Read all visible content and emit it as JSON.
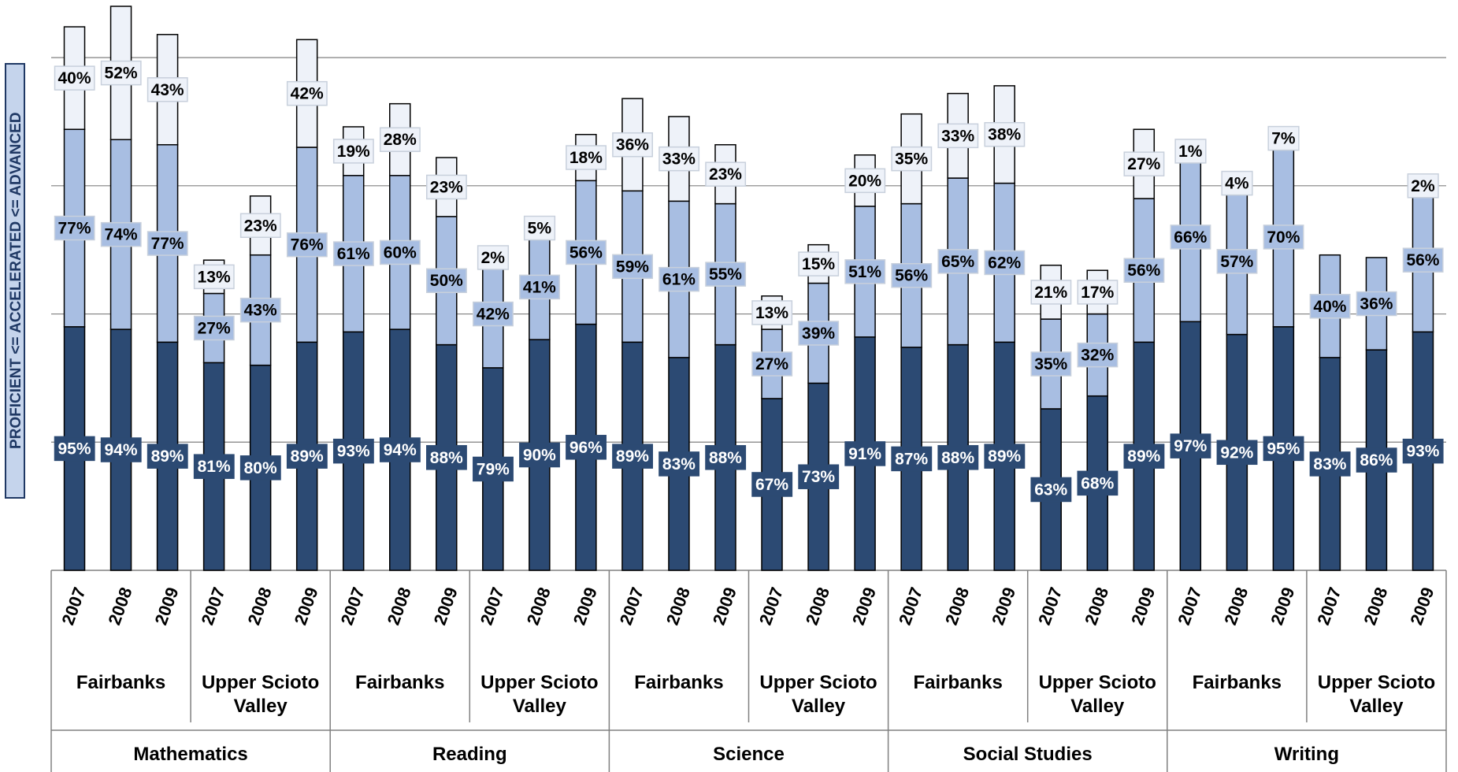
{
  "chart_data": {
    "type": "stacked_bar",
    "y_label": "PROFICIENT <= ACCELERATED <= ADVANCED",
    "categories": [
      "2007",
      "2008",
      "2009",
      "2007",
      "2008",
      "2009",
      "2007",
      "2008",
      "2009",
      "2007",
      "2008",
      "2009",
      "2007",
      "2008",
      "2009",
      "2007",
      "2008",
      "2009",
      "2007",
      "2008",
      "2009",
      "2007",
      "2008",
      "2009",
      "2007",
      "2008",
      "2009",
      "2007",
      "2008",
      "2009"
    ],
    "groups": [
      "Fairbanks",
      "Upper Scioto Valley",
      "Fairbanks",
      "Upper Scioto Valley",
      "Fairbanks",
      "Upper Scioto Valley",
      "Fairbanks",
      "Upper Scioto Valley",
      "Fairbanks",
      "Upper Scioto Valley"
    ],
    "subjects": [
      "Mathematics",
      "Reading",
      "Science",
      "Social Studies",
      "Writing"
    ],
    "ylim": [
      0,
      220
    ],
    "yticks": [
      50,
      100,
      150,
      200
    ],
    "grid": true,
    "series": [
      {
        "color": "#2c4a73",
        "label_color": "#ffffff",
        "values": [
          95,
          94,
          89,
          81,
          80,
          89,
          93,
          94,
          88,
          79,
          90,
          96,
          89,
          83,
          88,
          67,
          73,
          91,
          87,
          88,
          89,
          63,
          68,
          89,
          97,
          92,
          95,
          83,
          86,
          93
        ],
        "value_labels": [
          "95%",
          "94%",
          "89%",
          "81%",
          "80%",
          "89%",
          "93%",
          "94%",
          "88%",
          "79%",
          "90%",
          "96%",
          "89%",
          "83%",
          "88%",
          "67%",
          "73%",
          "91%",
          "87%",
          "88%",
          "89%",
          "63%",
          "68%",
          "89%",
          "97%",
          "92%",
          "95%",
          "83%",
          "86%",
          "93%"
        ]
      },
      {
        "color": "#a8bee2",
        "label_color": "#000000",
        "values": [
          77,
          74,
          77,
          27,
          43,
          76,
          61,
          60,
          50,
          42,
          41,
          56,
          59,
          61,
          55,
          27,
          39,
          51,
          56,
          65,
          62,
          35,
          32,
          56,
          66,
          57,
          70,
          40,
          36,
          56
        ],
        "value_labels": [
          "77%",
          "74%",
          "77%",
          "27%",
          "43%",
          "76%",
          "61%",
          "60%",
          "50%",
          "42%",
          "41%",
          "56%",
          "59%",
          "61%",
          "55%",
          "27%",
          "39%",
          "51%",
          "56%",
          "65%",
          "62%",
          "35%",
          "32%",
          "56%",
          "66%",
          "57%",
          "70%",
          "40%",
          "36%",
          "56%"
        ]
      },
      {
        "color": "#eef2f9",
        "label_color": "#000000",
        "values": [
          40,
          52,
          43,
          13,
          23,
          42,
          19,
          28,
          23,
          2,
          5,
          18,
          36,
          33,
          23,
          13,
          15,
          20,
          35,
          33,
          38,
          21,
          17,
          27,
          1,
          4,
          7,
          null,
          null,
          2
        ],
        "value_labels": [
          "40%",
          "52%",
          "43%",
          "13%",
          "23%",
          "42%",
          "19%",
          "28%",
          "23%",
          "2%",
          "5%",
          "18%",
          "36%",
          "33%",
          "23%",
          "13%",
          "15%",
          "20%",
          "35%",
          "33%",
          "38%",
          "21%",
          "17%",
          "27%",
          "1%",
          "4%",
          "7%",
          null,
          null,
          "2%"
        ]
      }
    ]
  }
}
